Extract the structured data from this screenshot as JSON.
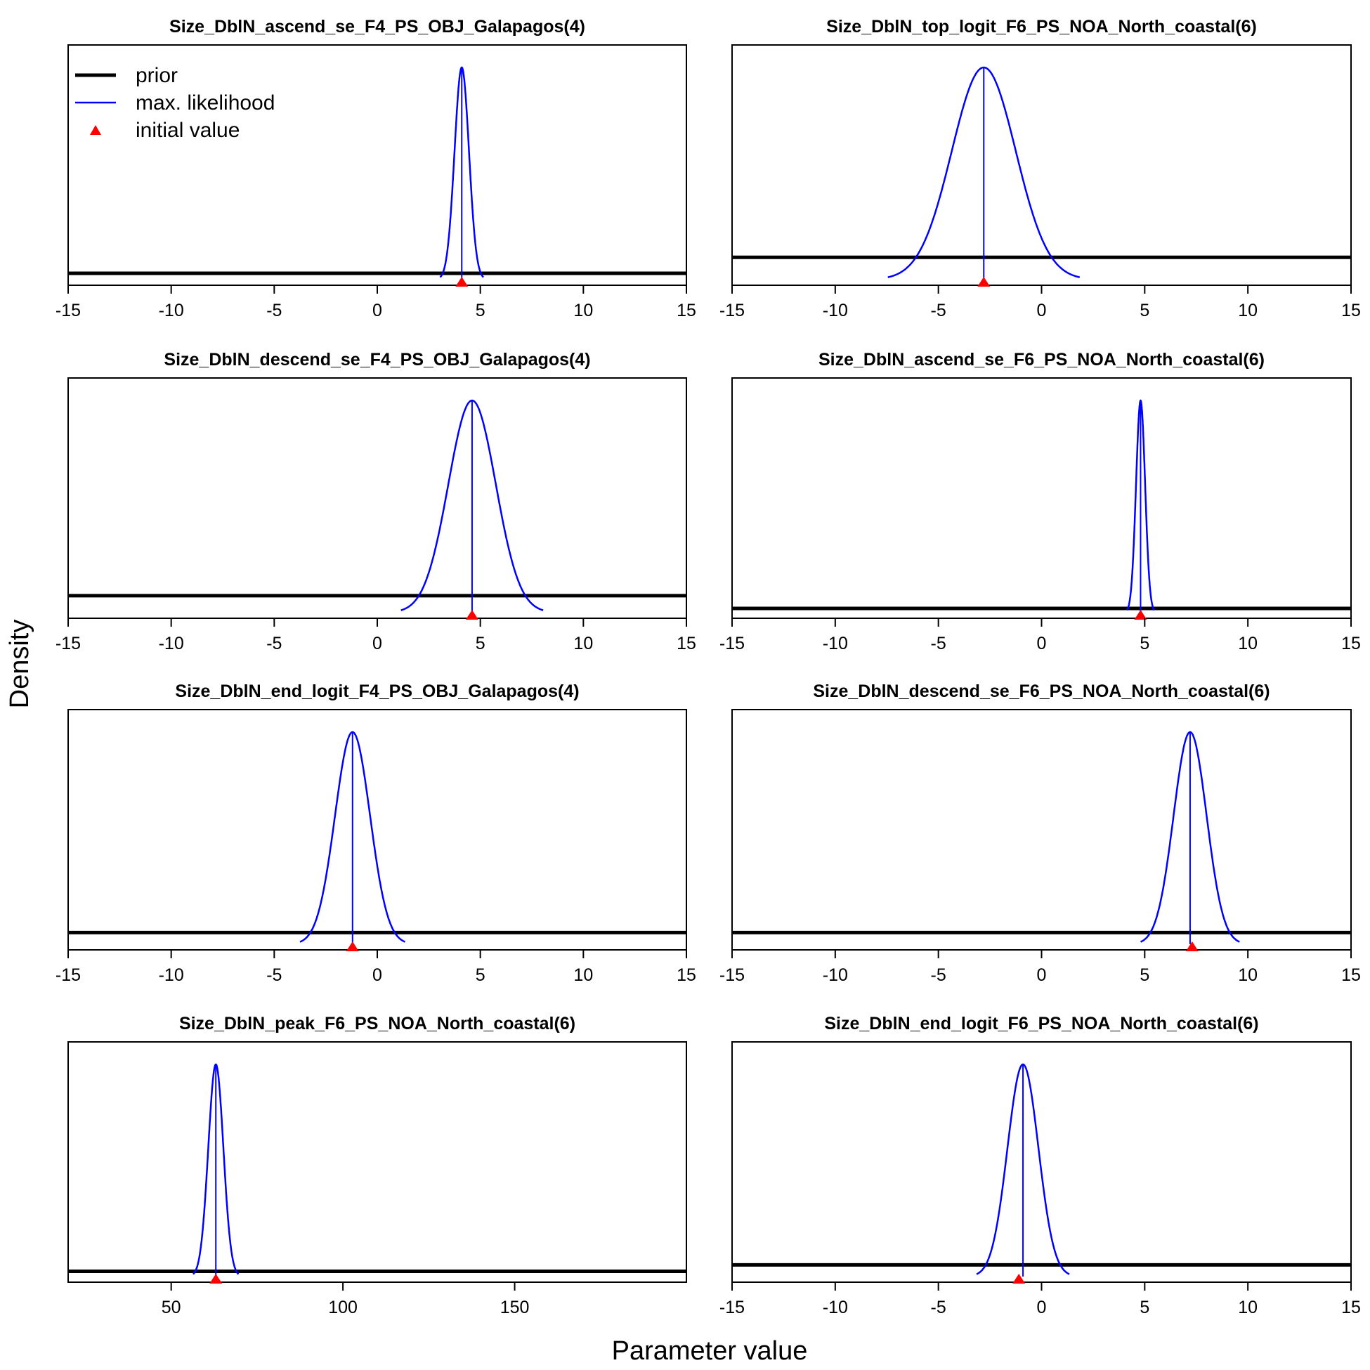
{
  "figure": {
    "ylabel": "Density",
    "xlabel": "Parameter value"
  },
  "legend": {
    "position": "top-left",
    "items": [
      {
        "label": "prior",
        "color": "#000000",
        "style": "thick-line"
      },
      {
        "label": "max. likelihood",
        "color": "#0000ff",
        "style": "line"
      },
      {
        "label": "initial value",
        "color": "#ff0000",
        "style": "triangle"
      }
    ]
  },
  "chart_data": [
    {
      "type": "line",
      "title": "Size_DblN_ascend_se_F4_PS_OBJ_Galapagos(4)",
      "xlim": [
        -15,
        15
      ],
      "xticks": [
        -15,
        -10,
        -5,
        0,
        5,
        10,
        15
      ],
      "mle": 4.1,
      "sd": 0.35,
      "init": 4.1,
      "prior_level": 0.03
    },
    {
      "type": "line",
      "title": "Size_DblN_top_logit_F6_PS_NOA_North_coastal(6)",
      "xlim": [
        -15,
        15
      ],
      "xticks": [
        -15,
        -10,
        -5,
        0,
        5,
        10,
        15
      ],
      "mle": -2.8,
      "sd": 1.55,
      "init": -2.8,
      "prior_level": 0.105
    },
    {
      "type": "line",
      "title": "Size_DblN_descend_se_F4_PS_OBJ_Galapagos(4)",
      "xlim": [
        -15,
        15
      ],
      "xticks": [
        -15,
        -10,
        -5,
        0,
        5,
        10,
        15
      ],
      "mle": 4.6,
      "sd": 1.15,
      "init": 4.6,
      "prior_level": 0.08
    },
    {
      "type": "line",
      "title": "Size_DblN_ascend_se_F6_PS_NOA_North_coastal(6)",
      "xlim": [
        -15,
        15
      ],
      "xticks": [
        -15,
        -10,
        -5,
        0,
        5,
        10,
        15
      ],
      "mle": 4.8,
      "sd": 0.22,
      "init": 4.8,
      "prior_level": 0.02
    },
    {
      "type": "line",
      "title": "Size_DblN_end_logit_F4_PS_OBJ_Galapagos(4)",
      "xlim": [
        -15,
        15
      ],
      "xticks": [
        -15,
        -10,
        -5,
        0,
        5,
        10,
        15
      ],
      "mle": -1.2,
      "sd": 0.85,
      "init": -1.2,
      "prior_level": 0.055
    },
    {
      "type": "line",
      "title": "Size_DblN_descend_se_F6_PS_NOA_North_coastal(6)",
      "xlim": [
        -15,
        15
      ],
      "xticks": [
        -15,
        -10,
        -5,
        0,
        5,
        10,
        15
      ],
      "mle": 7.2,
      "sd": 0.8,
      "init": 7.3,
      "prior_level": 0.055
    },
    {
      "type": "line",
      "title": "Size_DblN_peak_F6_PS_NOA_North_coastal(6)",
      "xlim": [
        20,
        200
      ],
      "xticks": [
        50,
        100,
        150
      ],
      "mle": 63,
      "sd": 2.2,
      "init": 63,
      "prior_level": 0.025
    },
    {
      "type": "line",
      "title": "Size_DblN_end_logit_F6_PS_NOA_North_coastal(6)",
      "xlim": [
        -15,
        15
      ],
      "xticks": [
        -15,
        -10,
        -5,
        0,
        5,
        10,
        15
      ],
      "mle": -0.9,
      "sd": 0.75,
      "init": -1.1,
      "prior_level": 0.055
    }
  ]
}
